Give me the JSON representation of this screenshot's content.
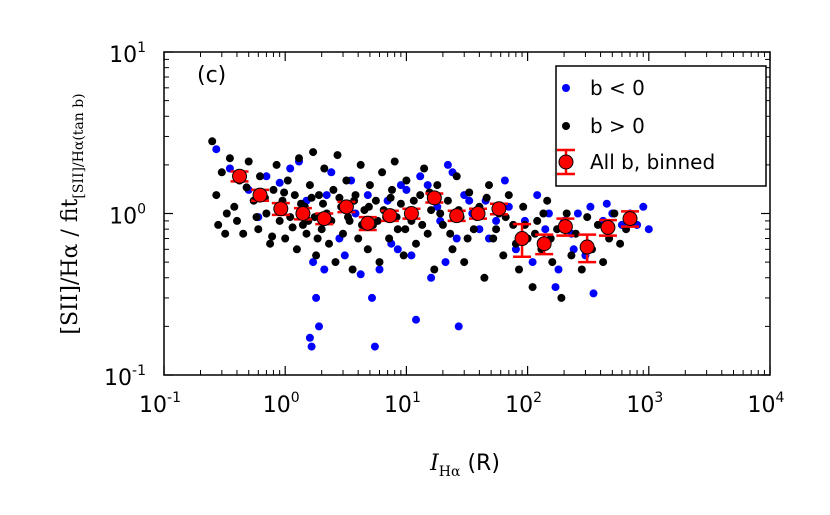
{
  "chart_data": {
    "type": "scatter",
    "panel_label": "(c)",
    "xscale": "log",
    "yscale": "log",
    "xlim": [
      0.1,
      10000
    ],
    "ylim": [
      0.1,
      10
    ],
    "x_ticks": [
      {
        "value": 0.1,
        "base": "10",
        "exp": "-1"
      },
      {
        "value": 1,
        "base": "10",
        "exp": "0"
      },
      {
        "value": 10,
        "base": "10",
        "exp": "1"
      },
      {
        "value": 100,
        "base": "10",
        "exp": "2"
      },
      {
        "value": 1000,
        "base": "10",
        "exp": "3"
      },
      {
        "value": 10000,
        "base": "10",
        "exp": "4"
      }
    ],
    "y_ticks": [
      {
        "value": 0.1,
        "base": "10",
        "exp": "-1"
      },
      {
        "value": 1,
        "base": "10",
        "exp": "0"
      },
      {
        "value": 10,
        "base": "10",
        "exp": "1"
      }
    ],
    "xlabel": {
      "main": "I",
      "sub": "Hα",
      "unit": " (R)"
    },
    "ylabel": {
      "main": "[SII]/Hα / fit",
      "sub": "[SII]/Hα(tan b)"
    },
    "legend": {
      "placement": "top-right",
      "entries": [
        {
          "label": "b < 0",
          "marker": "blue-dot"
        },
        {
          "label": "b > 0",
          "marker": "black-dot"
        },
        {
          "label": "All b, binned",
          "marker": "red-circle-errorbar"
        }
      ]
    },
    "colors": {
      "b_neg": "#0000ff",
      "b_pos": "#000000",
      "binned_fill": "#ff0000",
      "binned_err": "#ff0000"
    },
    "series": [
      {
        "name": "b < 0",
        "color": "#0000ff",
        "points": [
          [
            0.27,
            2.5
          ],
          [
            0.35,
            1.9
          ],
          [
            0.5,
            1.4
          ],
          [
            0.7,
            1.7
          ],
          [
            0.9,
            1.55
          ],
          [
            1.1,
            1.9
          ],
          [
            1.3,
            2.1
          ],
          [
            1.5,
            1.2
          ],
          [
            1.7,
            0.5
          ],
          [
            1.8,
            0.3
          ],
          [
            1.9,
            0.2
          ],
          [
            2.1,
            0.45
          ],
          [
            2.4,
            1.8
          ],
          [
            2.8,
            0.7
          ],
          [
            3.1,
            0.55
          ],
          [
            3.5,
            1.6
          ],
          [
            4.2,
            0.42
          ],
          [
            4.8,
            1.3
          ],
          [
            5.2,
            0.3
          ],
          [
            6.0,
            0.45
          ],
          [
            7.0,
            1.2
          ],
          [
            8.5,
            0.6
          ],
          [
            10,
            1.4
          ],
          [
            11,
            0.55
          ],
          [
            12,
            0.22
          ],
          [
            13,
            1.7
          ],
          [
            15,
            1.5
          ],
          [
            18,
            1.1
          ],
          [
            21,
            0.5
          ],
          [
            22,
            2.0
          ],
          [
            24,
            1.8
          ],
          [
            27,
            0.2
          ],
          [
            30,
            1.3
          ],
          [
            35,
            1.0
          ],
          [
            40,
            0.8
          ],
          [
            45,
            1.2
          ],
          [
            55,
            0.9
          ],
          [
            65,
            1.6
          ],
          [
            80,
            0.6
          ],
          [
            95,
            0.9
          ],
          [
            110,
            0.5
          ],
          [
            120,
            1.3
          ],
          [
            150,
            1.0
          ],
          [
            170,
            0.35
          ],
          [
            200,
            0.9
          ],
          [
            230,
            0.75
          ],
          [
            260,
            1.0
          ],
          [
            300,
            0.55
          ],
          [
            350,
            0.32
          ],
          [
            420,
            0.9
          ],
          [
            500,
            1.0
          ],
          [
            600,
            0.85
          ],
          [
            700,
            1.0
          ],
          [
            800,
            0.85
          ],
          [
            1000,
            0.8
          ],
          [
            1.6,
            0.17
          ],
          [
            1.65,
            0.15
          ],
          [
            0.6,
            0.95
          ],
          [
            2.2,
            1.3
          ],
          [
            3.8,
            1.0
          ],
          [
            5.5,
            0.15
          ],
          [
            7.5,
            0.65
          ],
          [
            9,
            1.5
          ],
          [
            16,
            0.4
          ],
          [
            19,
            0.9
          ],
          [
            26,
            0.7
          ],
          [
            33,
            1.2
          ],
          [
            48,
            0.7
          ],
          [
            70,
            1.1
          ],
          [
            140,
            0.8
          ],
          [
            180,
            0.45
          ],
          [
            240,
            0.6
          ],
          [
            330,
            1.1
          ],
          [
            450,
            1.15
          ],
          [
            900,
            1.1
          ]
        ]
      },
      {
        "name": "b > 0",
        "color": "#000000",
        "points": [
          [
            0.25,
            2.8
          ],
          [
            0.27,
            1.3
          ],
          [
            0.28,
            0.85
          ],
          [
            0.3,
            1.8
          ],
          [
            0.32,
            0.75
          ],
          [
            0.35,
            2.2
          ],
          [
            0.38,
            1.1
          ],
          [
            0.4,
            0.9
          ],
          [
            0.42,
            1.6
          ],
          [
            0.45,
            0.75
          ],
          [
            0.5,
            2.1
          ],
          [
            0.55,
            1.2
          ],
          [
            0.6,
            0.8
          ],
          [
            0.62,
            1.7
          ],
          [
            0.7,
            1.0
          ],
          [
            0.75,
            0.65
          ],
          [
            0.8,
            1.4
          ],
          [
            0.85,
            2.0
          ],
          [
            0.9,
            0.9
          ],
          [
            0.95,
            1.2
          ],
          [
            1.0,
            0.7
          ],
          [
            1.05,
            1.6
          ],
          [
            1.1,
            0.95
          ],
          [
            1.2,
            1.3
          ],
          [
            1.25,
            0.6
          ],
          [
            1.3,
            2.2
          ],
          [
            1.4,
            0.85
          ],
          [
            1.45,
            1.1
          ],
          [
            1.5,
            0.75
          ],
          [
            1.6,
            1.5
          ],
          [
            1.7,
            2.4
          ],
          [
            1.75,
            0.95
          ],
          [
            1.8,
            0.55
          ],
          [
            1.9,
            1.3
          ],
          [
            2.0,
            0.8
          ],
          [
            2.1,
            1.9
          ],
          [
            2.2,
            1.0
          ],
          [
            2.3,
            0.65
          ],
          [
            2.5,
            1.4
          ],
          [
            2.6,
            0.5
          ],
          [
            2.7,
            2.3
          ],
          [
            2.9,
            1.1
          ],
          [
            3.0,
            0.75
          ],
          [
            3.2,
            1.6
          ],
          [
            3.4,
            0.9
          ],
          [
            3.6,
            0.45
          ],
          [
            3.8,
            1.3
          ],
          [
            4.0,
            0.7
          ],
          [
            4.2,
            2.0
          ],
          [
            4.5,
            1.05
          ],
          [
            4.8,
            0.6
          ],
          [
            5.0,
            1.5
          ],
          [
            5.3,
            0.85
          ],
          [
            5.6,
            1.2
          ],
          [
            6.0,
            0.5
          ],
          [
            6.3,
            1.8
          ],
          [
            6.8,
            0.95
          ],
          [
            7.2,
            0.7
          ],
          [
            7.6,
            1.4
          ],
          [
            8.0,
            2.1
          ],
          [
            8.5,
            0.8
          ],
          [
            9.0,
            1.15
          ],
          [
            9.5,
            0.55
          ],
          [
            10,
            1.6
          ],
          [
            11,
            0.9
          ],
          [
            12,
            0.65
          ],
          [
            13,
            1.3
          ],
          [
            14,
            1.9
          ],
          [
            15,
            0.75
          ],
          [
            16,
            1.05
          ],
          [
            17,
            0.45
          ],
          [
            18,
            1.5
          ],
          [
            20,
            0.85
          ],
          [
            22,
            1.2
          ],
          [
            24,
            0.6
          ],
          [
            26,
            1.7
          ],
          [
            28,
            0.95
          ],
          [
            30,
            0.5
          ],
          [
            33,
            1.35
          ],
          [
            36,
            0.8
          ],
          [
            40,
            1.1
          ],
          [
            44,
            0.4
          ],
          [
            48,
            1.5
          ],
          [
            52,
            0.7
          ],
          [
            58,
            1.0
          ],
          [
            63,
            0.55
          ],
          [
            70,
            1.3
          ],
          [
            76,
            0.85
          ],
          [
            85,
            0.45
          ],
          [
            92,
            1.1
          ],
          [
            100,
            0.7
          ],
          [
            110,
            0.35
          ],
          [
            120,
            0.9
          ],
          [
            130,
            0.6
          ],
          [
            145,
            1.2
          ],
          [
            160,
            0.5
          ],
          [
            175,
            0.8
          ],
          [
            190,
            0.3
          ],
          [
            210,
            1.0
          ],
          [
            230,
            0.55
          ],
          [
            250,
            0.75
          ],
          [
            280,
            0.45
          ],
          [
            310,
            0.95
          ],
          [
            340,
            0.6
          ],
          [
            380,
            0.85
          ],
          [
            420,
            0.5
          ],
          [
            470,
            0.7
          ],
          [
            520,
            1.0
          ],
          [
            580,
            0.65
          ],
          [
            650,
            0.8
          ],
          [
            0.33,
            1.0
          ],
          [
            0.48,
            1.45
          ],
          [
            0.58,
            0.95
          ],
          [
            0.68,
            1.25
          ],
          [
            0.78,
            0.72
          ],
          [
            0.88,
            1.1
          ],
          [
            0.98,
            1.35
          ],
          [
            1.15,
            0.82
          ],
          [
            1.35,
            1.15
          ],
          [
            1.55,
            0.9
          ],
          [
            1.65,
            1.25
          ],
          [
            1.85,
            0.7
          ],
          [
            2.05,
            1.15
          ],
          [
            2.4,
            0.9
          ],
          [
            2.8,
            1.25
          ],
          [
            3.3,
            0.95
          ],
          [
            3.7,
            1.2
          ],
          [
            4.3,
            0.85
          ],
          [
            4.9,
            1.1
          ],
          [
            5.8,
            0.9
          ],
          [
            6.5,
            1.05
          ],
          [
            7.4,
            1.25
          ],
          [
            8.3,
            0.95
          ],
          [
            9.8,
            0.8
          ],
          [
            11.5,
            1.2
          ],
          [
            13.5,
            0.85
          ],
          [
            15.5,
            1.35
          ],
          [
            19,
            1.0
          ],
          [
            23,
            0.75
          ],
          [
            27,
            1.05
          ],
          [
            32,
            0.7
          ],
          [
            38,
            0.95
          ],
          [
            46,
            1.25
          ],
          [
            55,
            0.8
          ],
          [
            66,
            0.95
          ],
          [
            80,
            0.65
          ],
          [
            95,
            0.85
          ],
          [
            115,
            0.75
          ],
          [
            135,
            1.0
          ],
          [
            155,
            0.7
          ]
        ]
      }
    ],
    "binned": {
      "name": "All b, binned",
      "points": [
        {
          "x": 0.42,
          "y": 1.7,
          "err": 0.12
        },
        {
          "x": 0.62,
          "y": 1.3,
          "err": 0.1
        },
        {
          "x": 0.92,
          "y": 1.07,
          "err": 0.09
        },
        {
          "x": 1.4,
          "y": 1.0,
          "err": 0.08
        },
        {
          "x": 2.1,
          "y": 0.93,
          "err": 0.07
        },
        {
          "x": 3.2,
          "y": 1.1,
          "err": 0.08
        },
        {
          "x": 4.8,
          "y": 0.87,
          "err": 0.08
        },
        {
          "x": 7.3,
          "y": 0.97,
          "err": 0.07
        },
        {
          "x": 11,
          "y": 1.0,
          "err": 0.07
        },
        {
          "x": 17,
          "y": 1.25,
          "err": 0.08
        },
        {
          "x": 26,
          "y": 0.97,
          "err": 0.07
        },
        {
          "x": 39,
          "y": 1.0,
          "err": 0.07
        },
        {
          "x": 58,
          "y": 1.07,
          "err": 0.08
        },
        {
          "x": 90,
          "y": 0.7,
          "err": 0.16
        },
        {
          "x": 137,
          "y": 0.65,
          "err": 0.09
        },
        {
          "x": 205,
          "y": 0.83,
          "err": 0.1
        },
        {
          "x": 310,
          "y": 0.62,
          "err": 0.12
        },
        {
          "x": 460,
          "y": 0.82,
          "err": 0.09
        },
        {
          "x": 700,
          "y": 0.93,
          "err": 0.1
        }
      ]
    }
  }
}
